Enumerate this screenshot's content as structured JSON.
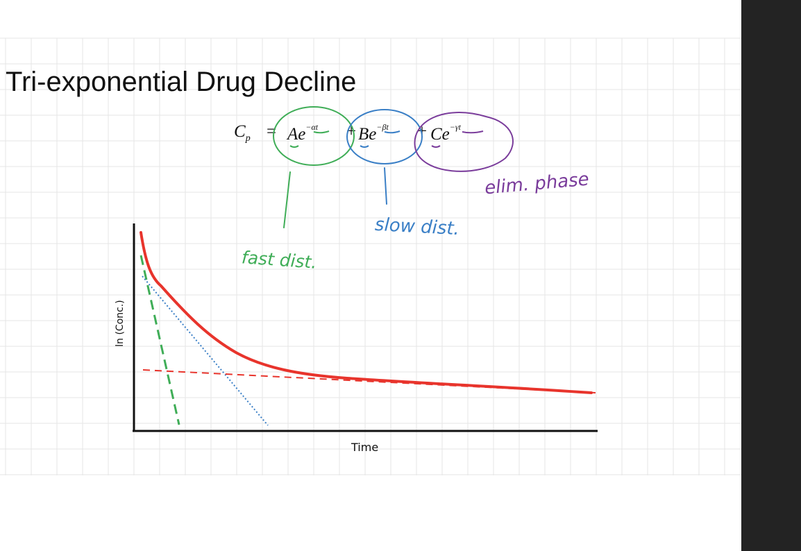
{
  "slide": {
    "title": "Tri-exponential Drug Decline",
    "equation": {
      "lhs": "C",
      "lhs_sub": "p",
      "equals": "=",
      "term1": "Ae",
      "exp1": "−αt",
      "plus1": "+",
      "term2": "Be",
      "exp2": "−βt",
      "plus2": "+",
      "term3": "Ce",
      "exp3": "−γt"
    },
    "annotations": {
      "fast": "fast dist.",
      "slow": "slow dist.",
      "elim": "elim. phase"
    },
    "graph": {
      "x_axis_label": "Time",
      "y_axis_label": "ln (Conc.)"
    }
  },
  "colors": {
    "curve": "#e8342c",
    "fast_phase": "#3fad57",
    "slow_phase": "#3a7fc6",
    "elim_phase": "#7a3c9b",
    "axis": "#111111",
    "grid": "#e6e6e6",
    "side_panel": "#232323"
  }
}
